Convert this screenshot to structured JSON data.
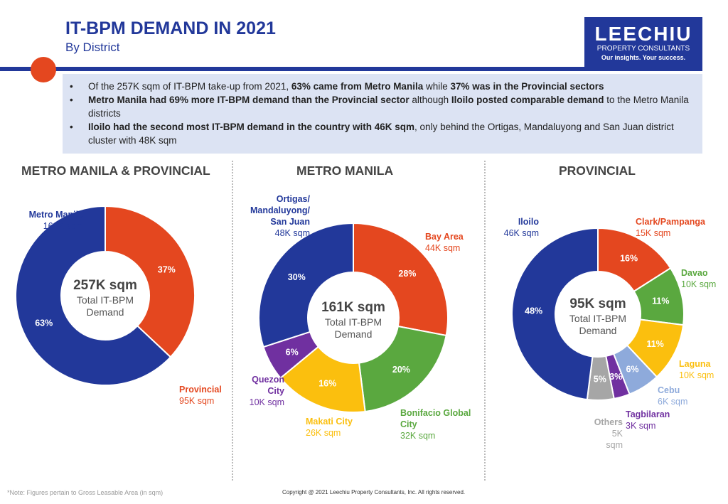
{
  "header": {
    "title": "IT-BPM DEMAND IN 2021",
    "subtitle": "By District"
  },
  "logo": {
    "name": "LEECHIU",
    "line2": "PROPERTY CONSULTANTS",
    "tagline": "Our insights. Your success."
  },
  "bullets": [
    {
      "parts": [
        {
          "t": "Of the 257K sqm of IT-BPM take-up from 2021, ",
          "b": false
        },
        {
          "t": "63% came from Metro Manila",
          "b": true
        },
        {
          "t": " while ",
          "b": false
        },
        {
          "t": "37% was in the Provincial sectors",
          "b": true
        }
      ]
    },
    {
      "parts": [
        {
          "t": "Metro Manila had 69% more IT-BPM demand than the Provincial sector",
          "b": true
        },
        {
          "t": " although ",
          "b": false
        },
        {
          "t": "Iloilo posted comparable demand",
          "b": true
        },
        {
          "t": " to the Metro Manila districts",
          "b": false
        }
      ]
    },
    {
      "parts": [
        {
          "t": "Iloilo had the second most IT-BPM demand in the country with 46K sqm",
          "b": true
        },
        {
          "t": ", only behind the Ortigas, Mandaluyong and San Juan district cluster with 48K sqm",
          "b": false
        }
      ]
    }
  ],
  "colors": {
    "blue": "#22389a",
    "red": "#e4471f",
    "green": "#5aa83f",
    "yellow": "#fbbf0e",
    "purple": "#7030a0",
    "lightblue": "#8eaadb",
    "gray": "#a6a6a6"
  },
  "chart_data": [
    {
      "type": "pie",
      "title": "METRO MANILA & PROVINCIAL",
      "center_value": "257K sqm",
      "center_label": "Total IT-BPM Demand",
      "slices": [
        {
          "name": "Provincial",
          "value_label": "95K sqm",
          "percent": 37,
          "color": "#e4471f"
        },
        {
          "name": "Metro Manila",
          "value_label": "161K sqm",
          "percent": 63,
          "color": "#22389a"
        }
      ]
    },
    {
      "type": "pie",
      "title": "METRO MANILA",
      "center_value": "161K sqm",
      "center_label": "Total IT-BPM Demand",
      "slices": [
        {
          "name": "Bay Area",
          "value_label": "44K sqm",
          "percent": 28,
          "color": "#e4471f"
        },
        {
          "name": "Bonifacio Global City",
          "value_label": "32K sqm",
          "percent": 20,
          "color": "#5aa83f"
        },
        {
          "name": "Makati City",
          "value_label": "26K sqm",
          "percent": 16,
          "color": "#fbbf0e"
        },
        {
          "name": "Quezon City",
          "value_label": "10K sqm",
          "percent": 6,
          "color": "#7030a0"
        },
        {
          "name": "Ortigas/ Mandaluyong/ San Juan",
          "value_label": "48K sqm",
          "percent": 30,
          "color": "#22389a"
        }
      ]
    },
    {
      "type": "pie",
      "title": "PROVINCIAL",
      "center_value": "95K sqm",
      "center_label": "Total IT-BPM Demand",
      "slices": [
        {
          "name": "Clark/Pampanga",
          "value_label": "15K sqm",
          "percent": 16,
          "color": "#e4471f"
        },
        {
          "name": "Davao",
          "value_label": "10K sqm",
          "percent": 11,
          "color": "#5aa83f"
        },
        {
          "name": "Laguna",
          "value_label": "10K sqm",
          "percent": 11,
          "color": "#fbbf0e"
        },
        {
          "name": "Cebu",
          "value_label": "6K sqm",
          "percent": 6,
          "color": "#8eaadb"
        },
        {
          "name": "Tagbilaran",
          "value_label": "3K sqm",
          "percent": 3,
          "color": "#7030a0"
        },
        {
          "name": "Others",
          "value_label": "5K sqm",
          "percent": 5,
          "color": "#a6a6a6"
        },
        {
          "name": "Iloilo",
          "value_label": "46K sqm",
          "percent": 48,
          "color": "#22389a"
        }
      ]
    }
  ],
  "footer": {
    "note": "*Note: Figures pertain to Gross Leasable Area (in sqm)",
    "copyright": "Copyright @ 2021 Leechiu Property Consultants, Inc. All rights reserved."
  }
}
